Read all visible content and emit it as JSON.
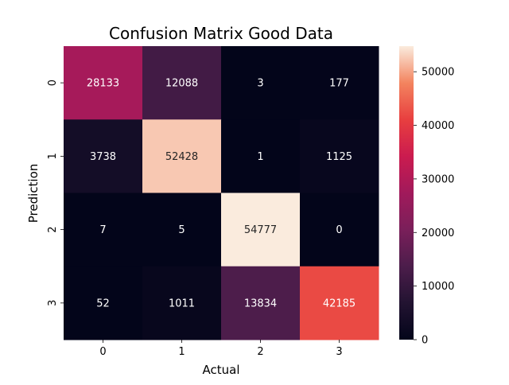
{
  "chart_data": {
    "type": "heatmap",
    "title": "Confusion Matrix Good Data",
    "xlabel": "Actual",
    "ylabel": "Prediction",
    "x_categories": [
      "0",
      "1",
      "2",
      "3"
    ],
    "y_categories": [
      "0",
      "1",
      "2",
      "3"
    ],
    "values": [
      [
        28133,
        12088,
        3,
        177
      ],
      [
        3738,
        52428,
        1,
        1125
      ],
      [
        7,
        5,
        54777,
        0
      ],
      [
        52,
        1011,
        13834,
        42185
      ]
    ],
    "colorbar": {
      "range": [
        0,
        54777
      ],
      "ticks": [
        0,
        10000,
        20000,
        30000,
        40000,
        50000
      ],
      "colormap": "rocket"
    },
    "grid": false,
    "legend": "colorbar-right"
  }
}
